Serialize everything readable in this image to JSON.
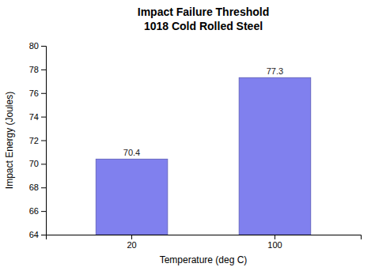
{
  "chart_data": {
    "type": "bar",
    "title": "Impact Failure Threshold",
    "subtitle": "1018 Cold Rolled Steel",
    "xlabel": "Temperature (deg C)",
    "ylabel": "Impact Energy (Joules)",
    "categories": [
      "20",
      "100"
    ],
    "values": [
      70.4,
      77.3
    ],
    "color": "#8080ee",
    "ylim": [
      64,
      80
    ],
    "yticks": [
      64,
      66,
      68,
      70,
      72,
      74,
      76,
      78,
      80
    ],
    "grid": false,
    "data_labels": true
  }
}
